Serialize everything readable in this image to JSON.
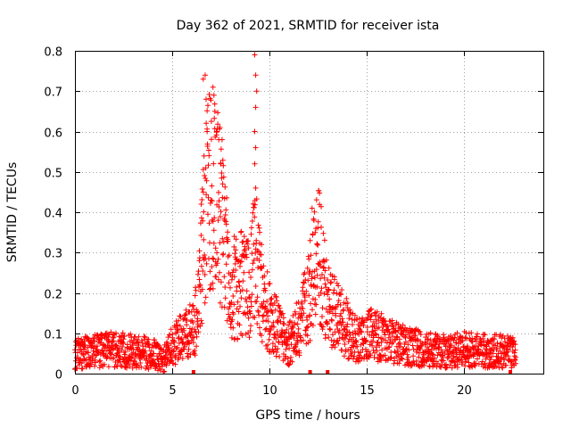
{
  "chart_data": {
    "type": "scatter",
    "title": "Day 362 of 2021, SRMTID for receiver ista",
    "xlabel": "GPS time / hours",
    "ylabel": "SRMTID / TECUs",
    "xlim": [
      0,
      24.1
    ],
    "ylim": [
      0,
      0.8
    ],
    "xticks": [
      0,
      5,
      10,
      15,
      20
    ],
    "yticks": [
      0,
      0.1,
      0.2,
      0.3,
      0.4,
      0.5,
      0.6,
      0.7,
      0.8
    ],
    "xtick_labels": [
      "0",
      "5",
      "10",
      "15",
      "20"
    ],
    "ytick_labels": [
      "0",
      "0.1",
      "0.2",
      "0.3",
      "0.4",
      "0.5",
      "0.6",
      "0.7",
      "0.8"
    ],
    "grid": true,
    "marker": "+",
    "series": [
      {
        "name": "SRMTID",
        "color": "#ff0000",
        "envelope": {
          "x": [
            0,
            1,
            2,
            3,
            4,
            4.5,
            5,
            5.5,
            6,
            6.3,
            6.6,
            6.9,
            7.2,
            7.6,
            8,
            8.5,
            9,
            9.3,
            9.6,
            10,
            10.5,
            11,
            11.5,
            12,
            12.3,
            12.6,
            13,
            13.5,
            14,
            14.5,
            15,
            16,
            17,
            18,
            19,
            20,
            21,
            22,
            22.7
          ],
          "y": [
            0.05,
            0.055,
            0.06,
            0.055,
            0.05,
            0.03,
            0.07,
            0.09,
            0.11,
            0.14,
            0.32,
            0.48,
            0.44,
            0.36,
            0.2,
            0.22,
            0.22,
            0.3,
            0.2,
            0.14,
            0.11,
            0.07,
            0.12,
            0.18,
            0.25,
            0.3,
            0.17,
            0.15,
            0.11,
            0.08,
            0.1,
            0.085,
            0.07,
            0.06,
            0.055,
            0.06,
            0.055,
            0.055,
            0.05
          ]
        },
        "outliers": [
          [
            6.6,
            0.73
          ],
          [
            6.7,
            0.74
          ],
          [
            6.75,
            0.68
          ],
          [
            6.8,
            0.6
          ],
          [
            6.9,
            0.54
          ],
          [
            7.1,
            0.71
          ],
          [
            7.15,
            0.69
          ],
          [
            7.2,
            0.65
          ],
          [
            7.3,
            0.6
          ],
          [
            7.4,
            0.58
          ],
          [
            7.5,
            0.52
          ],
          [
            6.5,
            0.42
          ],
          [
            6.6,
            0.45
          ],
          [
            7.0,
            0.43
          ],
          [
            7.6,
            0.47
          ],
          [
            7.7,
            0.38
          ],
          [
            9.25,
            0.79
          ],
          [
            9.3,
            0.74
          ],
          [
            9.35,
            0.7
          ],
          [
            9.3,
            0.66
          ],
          [
            9.25,
            0.6
          ],
          [
            9.3,
            0.56
          ],
          [
            9.25,
            0.52
          ],
          [
            9.3,
            0.46
          ],
          [
            12.2,
            0.41
          ],
          [
            12.3,
            0.38
          ],
          [
            12.4,
            0.36
          ],
          [
            12.1,
            0.33
          ],
          [
            9.5,
            0.35
          ],
          [
            9.6,
            0.32
          ],
          [
            8.2,
            0.34
          ],
          [
            6.4,
            0.28
          ]
        ],
        "zero_markers": [
          6.1,
          12.1,
          13.0,
          22.4
        ]
      }
    ]
  }
}
